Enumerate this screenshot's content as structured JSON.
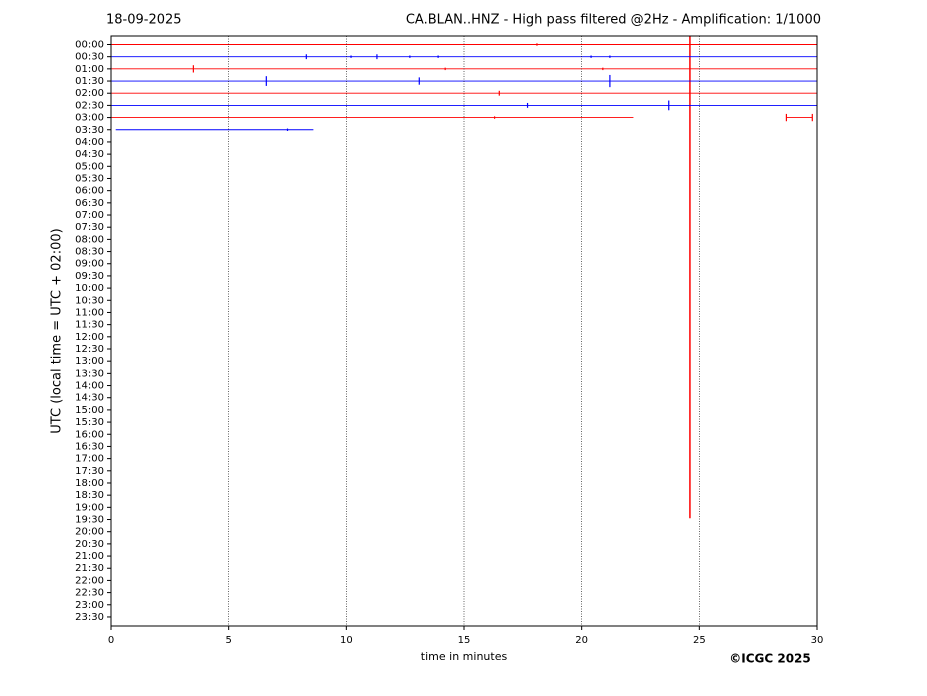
{
  "chart_data": {
    "type": "helicorder",
    "date": "18-09-2025",
    "title": "CA.BLAN..HNZ - High pass filtered @2Hz - Amplification: 1/1000",
    "xlabel": "time in minutes",
    "ylabel": "UTC (local time = UTC + 02:00)",
    "credit": "©ICGC 2025",
    "categories": [
      "00:00",
      "00:30",
      "01:00",
      "01:30",
      "02:00",
      "02:30",
      "03:00",
      "03:30",
      "04:00",
      "04:30",
      "05:00",
      "05:30",
      "06:00",
      "06:30",
      "07:00",
      "07:30",
      "08:00",
      "08:30",
      "09:00",
      "09:30",
      "10:00",
      "10:30",
      "11:00",
      "11:30",
      "12:00",
      "12:30",
      "13:00",
      "13:30",
      "14:00",
      "14:30",
      "15:00",
      "15:30",
      "16:00",
      "16:30",
      "17:00",
      "17:30",
      "18:00",
      "18:30",
      "19:00",
      "19:30",
      "20:00",
      "20:30",
      "21:00",
      "21:30",
      "22:00",
      "22:30",
      "23:00",
      "23:30"
    ],
    "xlim": [
      0,
      30
    ],
    "xticks": [
      0,
      5,
      10,
      15,
      20,
      25,
      30
    ],
    "grid": true,
    "traces": [
      {
        "color": "#ff0000",
        "segments": [
          [
            0,
            30
          ]
        ],
        "events": [
          {
            "x": 18.1,
            "amplitude": 0.1
          },
          {
            "x": 24.6,
            "amplitude": 38.9
          }
        ]
      },
      {
        "color": "#0000ff",
        "segments": [
          [
            0,
            30
          ]
        ],
        "events": [
          {
            "x": 8.3,
            "amplitude": 0.2
          },
          {
            "x": 10.2,
            "amplitude": 0.1
          },
          {
            "x": 11.3,
            "amplitude": 0.2
          },
          {
            "x": 12.7,
            "amplitude": 0.1
          },
          {
            "x": 13.9,
            "amplitude": 0.1
          },
          {
            "x": 20.4,
            "amplitude": 0.1
          },
          {
            "x": 21.2,
            "amplitude": 0.1
          }
        ]
      },
      {
        "color": "#ff0000",
        "segments": [
          [
            0,
            30
          ]
        ],
        "events": [
          {
            "x": 3.5,
            "amplitude": 0.3
          },
          {
            "x": 14.2,
            "amplitude": 0.1
          },
          {
            "x": 20.9,
            "amplitude": 0.1
          }
        ]
      },
      {
        "color": "#0000ff",
        "segments": [
          [
            0,
            30
          ]
        ],
        "events": [
          {
            "x": 6.6,
            "amplitude": 0.4
          },
          {
            "x": 13.1,
            "amplitude": 0.3
          },
          {
            "x": 21.2,
            "amplitude": 0.5
          }
        ]
      },
      {
        "color": "#ff0000",
        "segments": [
          [
            0,
            30
          ]
        ],
        "events": [
          {
            "x": 16.5,
            "amplitude": 0.2
          }
        ]
      },
      {
        "color": "#0000ff",
        "segments": [
          [
            0,
            30
          ]
        ],
        "events": [
          {
            "x": 17.7,
            "amplitude": 0.2
          },
          {
            "x": 23.7,
            "amplitude": 0.4
          }
        ]
      },
      {
        "color": "#ff0000",
        "segments": [
          [
            0,
            22.2
          ],
          [
            28.7,
            29.8
          ]
        ],
        "events": [
          {
            "x": 16.3,
            "amplitude": 0.1
          },
          {
            "x": 28.7,
            "amplitude": 0.3
          },
          {
            "x": 29.8,
            "amplitude": 0.3
          }
        ]
      },
      {
        "color": "#0000ff",
        "segments": [
          [
            0.2,
            8.6
          ]
        ],
        "events": [
          {
            "x": 7.5,
            "amplitude": 0.1
          }
        ]
      }
    ]
  }
}
